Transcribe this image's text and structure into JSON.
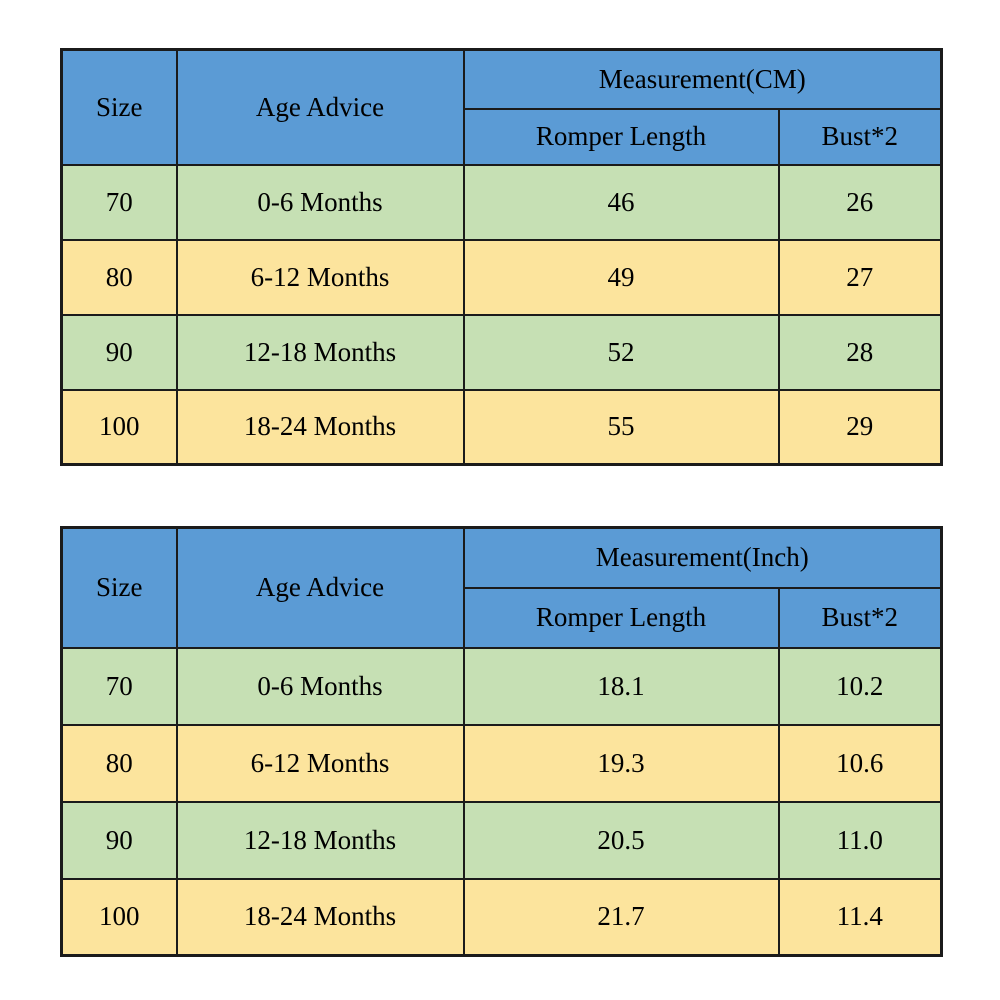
{
  "page": {
    "background": "#ffffff"
  },
  "colors": {
    "header_blue": "#5b9bd5",
    "size_yellow": "#ffff00",
    "row_green": "#c6e0b4",
    "row_tan": "#fce49d",
    "border": "#1b1b1b",
    "text": "#000000"
  },
  "tables": [
    {
      "headers": {
        "size": "Size",
        "age": "Age Advice",
        "measurement": "Measurement(CM)",
        "length": "Romper Length",
        "bust": "Bust*2"
      },
      "rows": [
        {
          "size": "70",
          "age": "0-6 Months",
          "length": "46",
          "bust": "26"
        },
        {
          "size": "80",
          "age": "6-12 Months",
          "length": "49",
          "bust": "27"
        },
        {
          "size": "90",
          "age": "12-18 Months",
          "length": "52",
          "bust": "28"
        },
        {
          "size": "100",
          "age": "18-24 Months",
          "length": "55",
          "bust": "29"
        }
      ]
    },
    {
      "headers": {
        "size": "Size",
        "age": "Age Advice",
        "measurement": "Measurement(Inch)",
        "length": "Romper Length",
        "bust": "Bust*2"
      },
      "rows": [
        {
          "size": "70",
          "age": "0-6 Months",
          "length": "18.1",
          "bust": "10.2"
        },
        {
          "size": "80",
          "age": "6-12 Months",
          "length": "19.3",
          "bust": "10.6"
        },
        {
          "size": "90",
          "age": "12-18 Months",
          "length": "20.5",
          "bust": "11.0"
        },
        {
          "size": "100",
          "age": "18-24 Months",
          "length": "21.7",
          "bust": "11.4"
        }
      ]
    }
  ],
  "chart_data": [
    {
      "type": "table",
      "title": "Measurement(CM)",
      "columns": [
        "Size",
        "Age Advice",
        "Romper Length",
        "Bust*2"
      ],
      "rows": [
        [
          "70",
          "0-6 Months",
          46,
          26
        ],
        [
          "80",
          "6-12 Months",
          49,
          27
        ],
        [
          "90",
          "12-18 Months",
          52,
          28
        ],
        [
          "100",
          "18-24 Months",
          55,
          29
        ]
      ]
    },
    {
      "type": "table",
      "title": "Measurement(Inch)",
      "columns": [
        "Size",
        "Age Advice",
        "Romper Length",
        "Bust*2"
      ],
      "rows": [
        [
          "70",
          "0-6 Months",
          18.1,
          10.2
        ],
        [
          "80",
          "6-12 Months",
          19.3,
          10.6
        ],
        [
          "90",
          "12-18 Months",
          20.5,
          11.0
        ],
        [
          "100",
          "18-24 Months",
          21.7,
          11.4
        ]
      ]
    }
  ]
}
